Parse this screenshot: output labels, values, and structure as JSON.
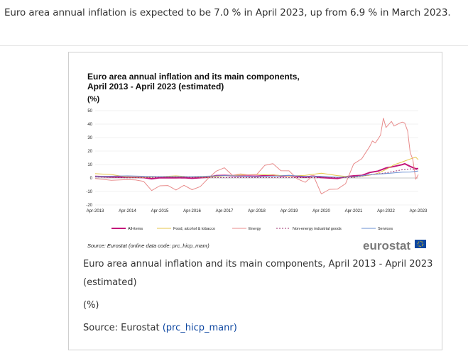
{
  "intro_text": "Euro area annual inflation is expected to be 7.0 % in April 2023, up from 6.9 % in March 2023.",
  "chart_data": {
    "type": "line",
    "title_line1": "Euro area annual inflation and its main components,",
    "title_line2": "April 2013 - April 2023 (estimated)",
    "unit": "(%)",
    "ylim": [
      -20,
      50
    ],
    "yticks": [
      "50",
      "40",
      "30",
      "20",
      "10",
      "0",
      "-10",
      "-20"
    ],
    "xlim": [
      2013.25,
      2023.25
    ],
    "xticks": [
      "Apr-2013",
      "Apr-2014",
      "Apr-2015",
      "Apr-2016",
      "Apr-2017",
      "Apr-2018",
      "Apr-2019",
      "Apr-2020",
      "Apr-2021",
      "Apr-2022",
      "Apr-2023"
    ],
    "grid": true,
    "legend_position": "bottom",
    "series": [
      {
        "name": "All-items",
        "color": "#c3157a",
        "width": 2,
        "dash": "",
        "x": [
          2013.25,
          2013.75,
          2014.25,
          2014.75,
          2015.0,
          2015.25,
          2015.75,
          2016.0,
          2016.25,
          2016.75,
          2017.0,
          2017.25,
          2017.75,
          2018.25,
          2018.75,
          2019.0,
          2019.25,
          2019.75,
          2020.0,
          2020.25,
          2020.75,
          2021.0,
          2021.25,
          2021.5,
          2021.75,
          2022.0,
          2022.25,
          2022.5,
          2022.75,
          2022.83,
          2023.0,
          2023.17,
          2023.25
        ],
        "y": [
          1.2,
          0.8,
          0.7,
          0.3,
          -0.6,
          0.2,
          0.1,
          0.2,
          -0.2,
          0.6,
          1.8,
          1.9,
          1.5,
          1.3,
          2.1,
          1.4,
          1.7,
          0.7,
          1.4,
          0.3,
          -0.3,
          0.9,
          1.6,
          1.9,
          4.1,
          5.1,
          7.4,
          8.6,
          9.9,
          10.6,
          8.6,
          6.9,
          7.0
        ]
      },
      {
        "name": "Food, alcohol & tobacco",
        "color": "#e6c64a",
        "width": 1,
        "dash": "",
        "x": [
          2013.25,
          2013.75,
          2014.25,
          2014.75,
          2015.25,
          2015.75,
          2016.25,
          2016.75,
          2017.25,
          2017.75,
          2018.25,
          2018.75,
          2019.25,
          2019.75,
          2020.25,
          2020.75,
          2021.25,
          2021.75,
          2022.0,
          2022.25,
          2022.5,
          2022.75,
          2023.0,
          2023.17,
          2023.25
        ],
        "y": [
          3.2,
          2.6,
          0.7,
          0.4,
          1.0,
          1.6,
          0.8,
          0.6,
          1.6,
          2.2,
          2.6,
          2.2,
          1.5,
          2.0,
          3.6,
          1.8,
          0.6,
          2.1,
          3.5,
          6.3,
          9.8,
          11.9,
          14.1,
          15.5,
          13.6
        ]
      },
      {
        "name": "Energy",
        "color": "#e88b8b",
        "width": 1,
        "dash": "",
        "x": [
          2013.25,
          2013.75,
          2014.25,
          2014.5,
          2014.75,
          2015.0,
          2015.25,
          2015.5,
          2015.75,
          2016.0,
          2016.25,
          2016.5,
          2016.75,
          2017.0,
          2017.25,
          2017.5,
          2017.75,
          2018.0,
          2018.25,
          2018.5,
          2018.75,
          2019.0,
          2019.25,
          2019.5,
          2019.75,
          2020.0,
          2020.25,
          2020.5,
          2020.75,
          2021.0,
          2021.25,
          2021.5,
          2021.75,
          2021.83,
          2021.92,
          2022.0,
          2022.08,
          2022.17,
          2022.25,
          2022.42,
          2022.5,
          2022.67,
          2022.75,
          2022.83,
          2022.92,
          2023.0,
          2023.08,
          2023.17,
          2023.25
        ],
        "y": [
          -0.4,
          -1.7,
          -1.2,
          -1.5,
          -2.5,
          -9.3,
          -5.8,
          -5.6,
          -8.9,
          -5.4,
          -8.7,
          -6.4,
          -0.2,
          5.1,
          7.6,
          2.0,
          3.0,
          2.2,
          2.6,
          9.4,
          10.7,
          5.4,
          5.3,
          -0.6,
          -3.2,
          2.0,
          -11.8,
          -8.4,
          -8.2,
          -4.2,
          10.4,
          14.3,
          23.6,
          27.5,
          26.0,
          28.8,
          31.8,
          44.4,
          37.5,
          42.0,
          38.6,
          40.7,
          41.5,
          40.8,
          34.9,
          18.9,
          13.7,
          -0.9,
          2.5
        ]
      },
      {
        "name": "Non-energy industrial goods",
        "color": "#9b2d6e",
        "width": 1,
        "dash": "2,2",
        "x": [
          2013.25,
          2014.25,
          2015.25,
          2016.25,
          2017.25,
          2018.25,
          2019.25,
          2020.25,
          2021.25,
          2021.75,
          2022.25,
          2022.75,
          2023.0,
          2023.25
        ],
        "y": [
          0.8,
          0.1,
          0.6,
          0.5,
          0.3,
          0.3,
          0.3,
          0.2,
          0.4,
          2.4,
          3.8,
          6.1,
          6.8,
          6.2
        ]
      },
      {
        "name": "Services",
        "color": "#6a8fd2",
        "width": 1,
        "dash": "",
        "x": [
          2013.25,
          2014.25,
          2015.25,
          2016.25,
          2017.25,
          2017.75,
          2018.25,
          2018.75,
          2019.25,
          2019.75,
          2020.25,
          2020.75,
          2021.25,
          2021.75,
          2022.25,
          2022.75,
          2023.0,
          2023.25
        ],
        "y": [
          1.1,
          1.6,
          1.0,
          1.0,
          1.8,
          1.5,
          1.0,
          1.3,
          1.9,
          1.2,
          1.3,
          0.6,
          0.9,
          2.4,
          3.3,
          4.3,
          4.4,
          5.2
        ]
      }
    ],
    "source_note": "Source: Eurostat (online data code: prc_hicp_manr)",
    "logo_text": "eurostat"
  },
  "caption": {
    "title": "Euro area annual inflation and its main components, April 2013 - April 2023 (estimated)",
    "unit": "(%)",
    "source_prefix": "Source: Eurostat ",
    "source_link": "(prc_hicp_manr)"
  },
  "colors": {
    "link": "#0e47a1",
    "logo_blue": "#0e47a1",
    "logo_gray": "#7a7a7a"
  }
}
